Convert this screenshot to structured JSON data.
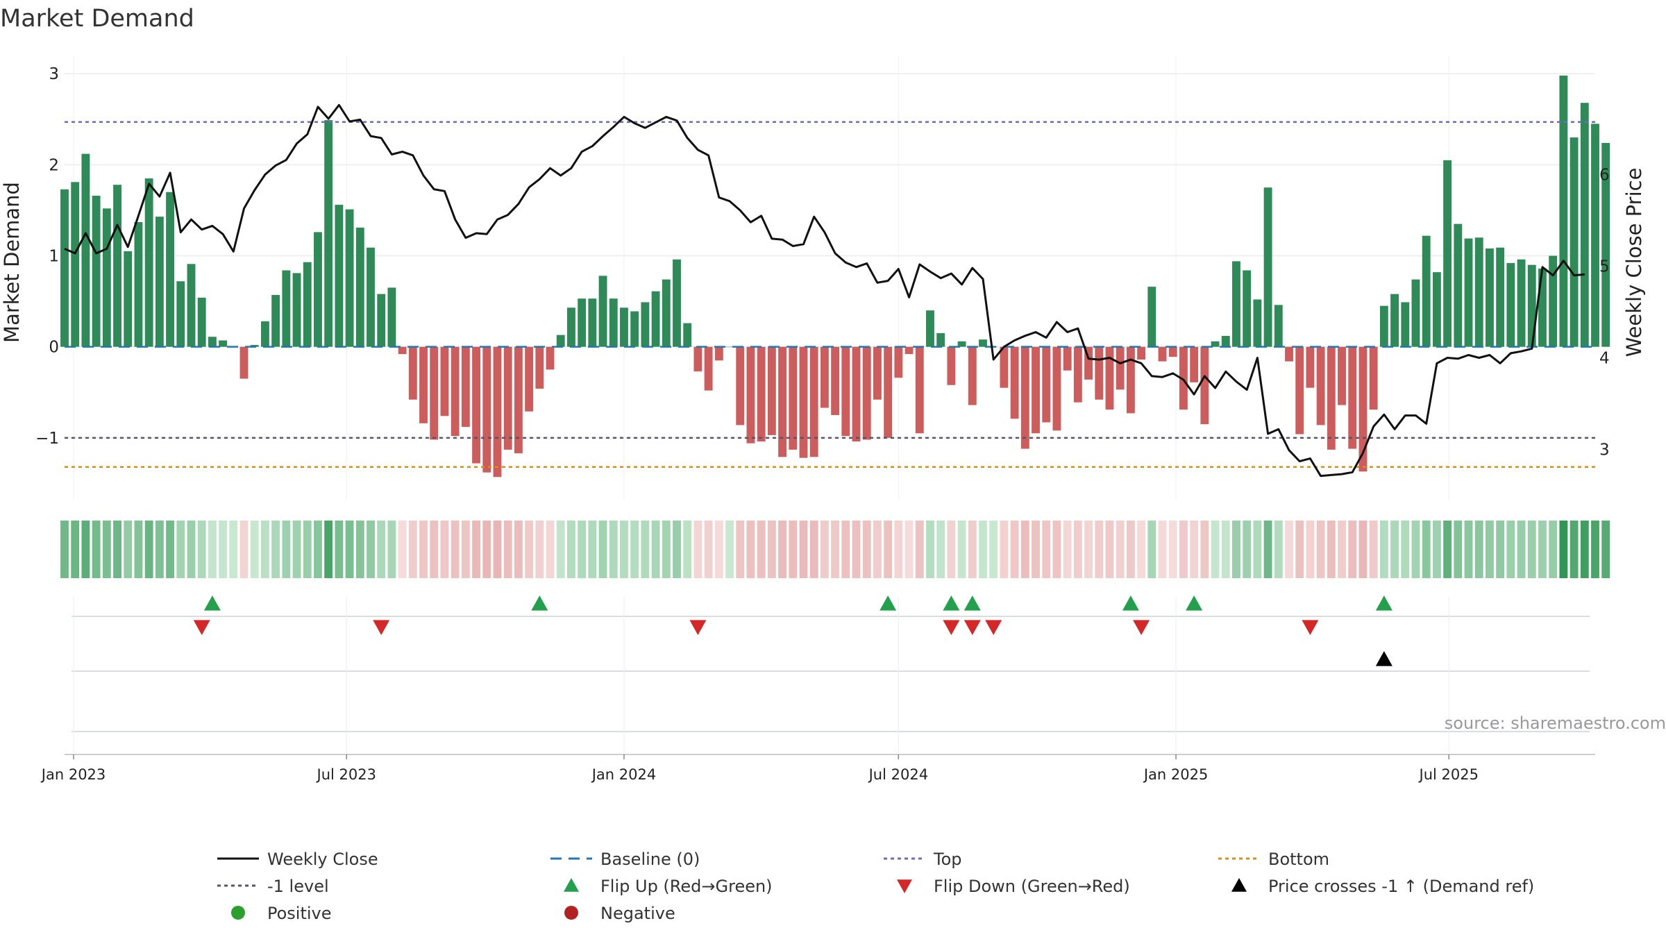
{
  "chart_data": {
    "type": "bar",
    "title": "Market Demand",
    "ylabel_left": "Market Demand",
    "ylabel_right": "Weekly Close Price",
    "ylim_left": [
      -1.68,
      3.2
    ],
    "ylim_right": [
      2.45,
      7.3
    ],
    "yticks_left": [
      -1,
      0,
      1,
      2,
      3
    ],
    "yticks_right": [
      3,
      4,
      5,
      6
    ],
    "x_start": "2022-12-26",
    "x_end": "2025-10-06",
    "xticks": [
      {
        "date": "2023-01-01",
        "label": "Jan 2023"
      },
      {
        "date": "2023-07-01",
        "label": "Jul 2023"
      },
      {
        "date": "2024-01-01",
        "label": "Jan 2024"
      },
      {
        "date": "2024-07-01",
        "label": "Jul 2024"
      },
      {
        "date": "2025-01-01",
        "label": "Jan 2025"
      },
      {
        "date": "2025-07-01",
        "label": "Jul 2025"
      }
    ],
    "reference_lines": {
      "top": 2.47,
      "bottom": -1.32,
      "minus_one": -1,
      "baseline": 0
    },
    "first_week": "2022-12-26",
    "demand": [
      1.73,
      1.81,
      2.12,
      1.66,
      1.52,
      1.78,
      1.05,
      1.37,
      1.85,
      1.43,
      1.7,
      0.72,
      0.91,
      0.54,
      0.11,
      0.07,
      0.0,
      -0.35,
      0.02,
      0.28,
      0.57,
      0.84,
      0.81,
      0.93,
      1.26,
      2.49,
      1.56,
      1.51,
      1.31,
      1.09,
      0.58,
      0.65,
      -0.08,
      -0.58,
      -0.84,
      -1.02,
      -0.76,
      -0.98,
      -0.88,
      -1.28,
      -1.38,
      -1.43,
      -1.13,
      -1.17,
      -0.71,
      -0.46,
      -0.25,
      0.13,
      0.43,
      0.53,
      0.53,
      0.78,
      0.53,
      0.43,
      0.39,
      0.49,
      0.61,
      0.74,
      0.96,
      0.26,
      -0.27,
      -0.48,
      -0.15,
      0.0,
      -0.86,
      -1.06,
      -1.04,
      -0.97,
      -1.21,
      -1.13,
      -1.22,
      -1.21,
      -0.67,
      -0.75,
      -0.98,
      -1.04,
      -1.02,
      -0.58,
      -1.0,
      -0.34,
      -0.08,
      -0.95,
      0.4,
      0.15,
      -0.42,
      0.06,
      -0.64,
      0.08,
      0.0,
      -0.45,
      -0.79,
      -1.12,
      -0.95,
      -0.83,
      -0.92,
      -0.26,
      -0.61,
      -0.36,
      -0.58,
      -0.69,
      -0.47,
      -0.73,
      -0.14,
      0.66,
      -0.16,
      -0.11,
      -0.69,
      -0.39,
      -0.85,
      0.06,
      0.12,
      0.94,
      0.84,
      0.52,
      1.75,
      0.46,
      -0.16,
      -0.96,
      -0.45,
      -0.86,
      -1.13,
      -0.64,
      -1.12,
      -1.37,
      -0.69,
      0.45,
      0.58,
      0.49,
      0.74,
      1.22,
      0.82,
      2.05,
      1.35,
      1.19,
      1.2,
      1.08,
      1.09,
      0.92,
      0.96,
      0.9,
      0.86,
      1.0,
      2.98,
      2.3,
      2.68,
      2.45,
      2.24
    ],
    "price": [
      5.19,
      5.14,
      5.36,
      5.14,
      5.19,
      5.45,
      5.21,
      5.55,
      5.9,
      5.76,
      6.02,
      5.37,
      5.51,
      5.4,
      5.44,
      5.35,
      5.16,
      5.63,
      5.83,
      6.0,
      6.1,
      6.16,
      6.34,
      6.44,
      6.74,
      6.61,
      6.76,
      6.58,
      6.6,
      6.42,
      6.4,
      6.22,
      6.25,
      6.21,
      5.99,
      5.84,
      5.82,
      5.51,
      5.31,
      5.36,
      5.35,
      5.51,
      5.56,
      5.68,
      5.86,
      5.95,
      6.07,
      5.99,
      6.07,
      6.25,
      6.31,
      6.42,
      6.52,
      6.63,
      6.56,
      6.51,
      6.57,
      6.63,
      6.59,
      6.4,
      6.27,
      6.21,
      5.75,
      5.71,
      5.61,
      5.48,
      5.55,
      5.3,
      5.29,
      5.22,
      5.24,
      5.54,
      5.37,
      5.14,
      5.04,
      4.99,
      5.03,
      4.82,
      4.84,
      4.97,
      4.66,
      5.02,
      4.94,
      4.87,
      4.92,
      4.8,
      4.98,
      4.86,
      3.98,
      4.12,
      4.19,
      4.24,
      4.28,
      4.22,
      4.39,
      4.28,
      4.32,
      3.99,
      3.98,
      4.0,
      3.94,
      3.98,
      3.94,
      3.8,
      3.79,
      3.83,
      3.76,
      3.6,
      3.8,
      3.67,
      3.85,
      3.74,
      3.65,
      4.0,
      3.17,
      3.22,
      2.99,
      2.87,
      2.9,
      2.71,
      2.72,
      2.73,
      2.75,
      2.96,
      3.25,
      3.38,
      3.22,
      3.37,
      3.37,
      3.28,
      3.94,
      4.0,
      3.99,
      4.03,
      4.0,
      4.03,
      3.94,
      4.05,
      4.07,
      4.1,
      4.99,
      4.9,
      5.06,
      4.9,
      4.91
    ],
    "flip_up_dates": [
      "2023-04-03",
      "2023-11-06",
      "2024-06-24",
      "2024-08-05",
      "2024-08-19",
      "2024-12-02",
      "2025-01-13",
      "2025-05-19"
    ],
    "flip_down_dates": [
      "2023-03-27",
      "2023-07-24",
      "2024-02-19",
      "2024-08-05",
      "2024-08-19",
      "2024-09-02",
      "2024-12-09",
      "2025-03-31"
    ],
    "price_cross_dates": [
      "2025-05-19"
    ],
    "legend": [
      {
        "label": "Weekly Close",
        "style": "solid-line",
        "color": "#111111"
      },
      {
        "label": "Baseline (0)",
        "style": "dashed-line",
        "color": "#1f77b4"
      },
      {
        "label": "Top",
        "style": "dotted-line",
        "color": "#6a6acf"
      },
      {
        "label": "Bottom",
        "style": "dotted-line",
        "color": "#e08c10"
      },
      {
        "label": "-1 level",
        "style": "dotted-line",
        "color": "#555566"
      },
      {
        "label": "Flip Up (Red→Green)",
        "style": "triangle-up",
        "color": "#22a04b"
      },
      {
        "label": "Flip Down (Green→Red)",
        "style": "triangle-down",
        "color": "#d62728"
      },
      {
        "label": "Price crosses -1 ↑ (Demand ref)",
        "style": "triangle-up",
        "color": "#000000"
      },
      {
        "label": "Positive",
        "style": "circle",
        "color": "#2ca02c"
      },
      {
        "label": "Negative",
        "style": "circle",
        "color": "#b22222"
      }
    ],
    "colors": {
      "positive_bar": "#2e8b57",
      "negative_bar": "#cd5c5c",
      "price_line": "#111111",
      "grid": "#e6e6e6"
    }
  },
  "source_text": "source: sharemaestro.com"
}
